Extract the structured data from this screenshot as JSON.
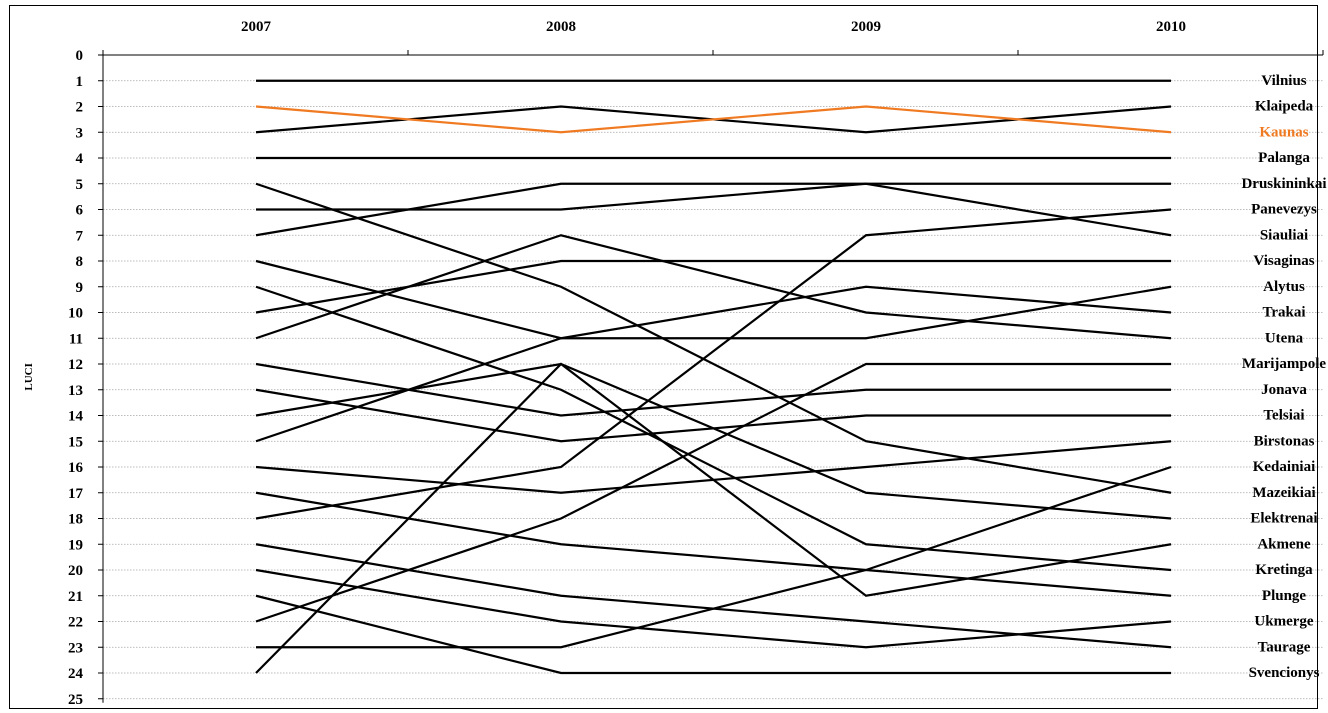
{
  "chart_data": {
    "type": "line",
    "x": [
      "2007",
      "2008",
      "2009",
      "2010"
    ],
    "ylabel": "LUCI",
    "ylim": [
      0,
      25
    ],
    "y_inverted": true,
    "yticks": [
      "0",
      "1",
      "2",
      "3",
      "4",
      "5",
      "6",
      "7",
      "8",
      "9",
      "10",
      "11",
      "12",
      "13",
      "14",
      "15",
      "16",
      "17",
      "18",
      "19",
      "20",
      "21",
      "22",
      "23",
      "24",
      "25"
    ],
    "grid": "horizontal",
    "x_axis_position": "top",
    "series": [
      {
        "name": "Vilnius",
        "values": [
          1,
          1,
          1,
          1
        ],
        "color": "#000000"
      },
      {
        "name": "Klaipeda",
        "values": [
          3,
          2,
          3,
          2
        ],
        "color": "#000000"
      },
      {
        "name": "Kaunas",
        "values": [
          2,
          3,
          2,
          3
        ],
        "color": "#F07A21"
      },
      {
        "name": "Palanga",
        "values": [
          4,
          4,
          4,
          4
        ],
        "color": "#000000"
      },
      {
        "name": "Druskininkai",
        "values": [
          7,
          5,
          5,
          5
        ],
        "color": "#000000"
      },
      {
        "name": "Panevezys",
        "values": [
          5,
          9,
          15,
          17
        ],
        "color": "#000000"
      },
      {
        "name": "Siauliai",
        "values": [
          6,
          6,
          5,
          7
        ],
        "color": "#000000"
      },
      {
        "name": "Visaginas",
        "values": [
          10,
          8,
          8,
          8
        ],
        "color": "#000000"
      },
      {
        "name": "Alytus",
        "values": [
          15,
          11,
          11,
          9
        ],
        "color": "#000000"
      },
      {
        "name": "Trakai",
        "values": [
          8,
          11,
          9,
          10
        ],
        "color": "#000000"
      },
      {
        "name": "Utena",
        "values": [
          11,
          7,
          10,
          11
        ],
        "color": "#000000"
      },
      {
        "name": "Marijampole",
        "values": [
          22,
          18,
          12,
          12
        ],
        "color": "#000000"
      },
      {
        "name": "Jonava",
        "values": [
          9,
          13,
          19,
          20
        ],
        "color": "#000000"
      },
      {
        "name": "Telsiai",
        "values": [
          13,
          15,
          14,
          14
        ],
        "color": "#000000"
      },
      {
        "name": "Birstonas",
        "values": [
          16,
          17,
          16,
          15
        ],
        "color": "#000000"
      },
      {
        "name": "Kedainiai",
        "values": [
          23,
          23,
          20,
          16
        ],
        "color": "#000000"
      },
      {
        "name": "Mazeikiai",
        "values": [
          12,
          14,
          13,
          13
        ],
        "color": "#000000"
      },
      {
        "name": "Elektrenai",
        "values": [
          14,
          12,
          17,
          18
        ],
        "color": "#000000"
      },
      {
        "name": "Akmene",
        "values": [
          21,
          24,
          24,
          24
        ],
        "color": "#000000"
      },
      {
        "name": "Kretinga",
        "values": [
          17,
          19,
          20,
          21
        ],
        "color": "#000000"
      },
      {
        "name": "Plunge",
        "values": [
          18,
          16,
          7,
          6
        ],
        "color": "#000000"
      },
      {
        "name": "Ukmerge",
        "values": [
          19,
          21,
          22,
          23
        ],
        "color": "#000000"
      },
      {
        "name": "Taurage",
        "values": [
          20,
          22,
          23,
          22
        ],
        "color": "#000000"
      },
      {
        "name": "Svencionys",
        "values": [
          24,
          12,
          21,
          19
        ],
        "color": "#000000"
      }
    ],
    "labels_right": [
      {
        "text": "Vilnius",
        "pos": 1,
        "color": "#000000"
      },
      {
        "text": "Klaipeda",
        "pos": 2,
        "color": "#000000"
      },
      {
        "text": "Kaunas",
        "pos": 3,
        "color": "#F07A21"
      },
      {
        "text": "Palanga",
        "pos": 4,
        "color": "#000000"
      },
      {
        "text": "Druskininkai",
        "pos": 5,
        "color": "#000000"
      },
      {
        "text": "Panevezys",
        "pos": 6,
        "color": "#000000"
      },
      {
        "text": "Siauliai",
        "pos": 7,
        "color": "#000000"
      },
      {
        "text": "Visaginas",
        "pos": 8,
        "color": "#000000"
      },
      {
        "text": "Alytus",
        "pos": 9,
        "color": "#000000"
      },
      {
        "text": "Trakai",
        "pos": 10,
        "color": "#000000"
      },
      {
        "text": "Utena",
        "pos": 11,
        "color": "#000000"
      },
      {
        "text": "Marijampole",
        "pos": 12,
        "color": "#000000"
      },
      {
        "text": "Jonava",
        "pos": 13,
        "color": "#000000"
      },
      {
        "text": "Telsiai",
        "pos": 14,
        "color": "#000000"
      },
      {
        "text": "Birstonas",
        "pos": 15,
        "color": "#000000"
      },
      {
        "text": "Kedainiai",
        "pos": 16,
        "color": "#000000"
      },
      {
        "text": "Mazeikiai",
        "pos": 17,
        "color": "#000000"
      },
      {
        "text": "Elektrenai",
        "pos": 18,
        "color": "#000000"
      },
      {
        "text": "Akmene",
        "pos": 19,
        "color": "#000000"
      },
      {
        "text": "Kretinga",
        "pos": 20,
        "color": "#000000"
      },
      {
        "text": "Plunge",
        "pos": 21,
        "color": "#000000"
      },
      {
        "text": "Ukmerge",
        "pos": 22,
        "color": "#000000"
      },
      {
        "text": "Taurage",
        "pos": 23,
        "color": "#000000"
      },
      {
        "text": "Svencionys",
        "pos": 24,
        "color": "#000000"
      }
    ]
  }
}
